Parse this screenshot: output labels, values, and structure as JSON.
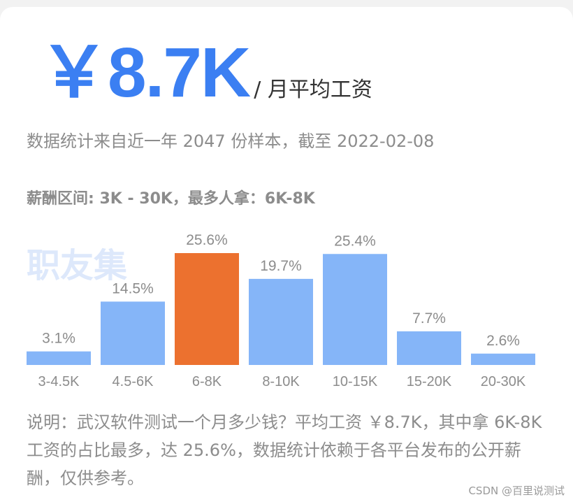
{
  "header": {
    "amount": "￥8.7K",
    "unit": "/ 月平均工资"
  },
  "subtitle": "数据统计来自近一年 2047 份样本，截至 2022-02-08",
  "range_text": "薪酬区间: 3K - 30K，最多人拿：6K-8K",
  "watermark": "职友集",
  "description": "说明：武汉软件测试一个月多少钱？平均工资 ￥8.7K，其中拿 6K-8K 工资的占比最多，达 25.6%，数据统计依赖于各平台发布的公开薪酬，仅供参考。",
  "footer": "CSDN @百里说测试",
  "colors": {
    "bar": "#85b5f8",
    "highlight": "#ec712f",
    "text": "#8c8c8c",
    "accent": "#3b7ff2"
  },
  "chart_data": {
    "type": "bar",
    "categories": [
      "3-4.5K",
      "4.5-6K",
      "6-8K",
      "8-10K",
      "10-15K",
      "15-20K",
      "20-30K"
    ],
    "values": [
      3.1,
      14.5,
      25.6,
      19.7,
      25.4,
      7.7,
      2.6
    ],
    "value_labels": [
      "3.1%",
      "14.5%",
      "25.6%",
      "19.7%",
      "25.4%",
      "7.7%",
      "2.6%"
    ],
    "highlight_index": 2,
    "ylim": [
      0,
      25.6
    ],
    "title": "",
    "xlabel": "",
    "ylabel": ""
  }
}
